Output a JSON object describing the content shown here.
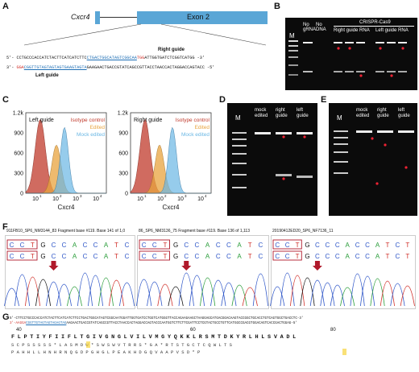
{
  "panels": {
    "A": "A",
    "B": "B",
    "C": "C",
    "D": "D",
    "E": "E",
    "F": "F",
    "G": "G"
  },
  "panelA": {
    "gene": "Cxcr4",
    "exon": "Exon 2",
    "right_guide_label": "Right guide",
    "left_guide_label": "Left guide",
    "seq_top_prefix": "5'- CCTGCCCACCATCTACTTCATCATCTTC",
    "seq_top_guide": "CTGACTGGCATAGTCGGCAA",
    "seq_top_pam": "TGG",
    "seq_top_suffix": "ATTGGTGATCTCGGTCATGG -3'",
    "seq_bot_prefix": "3'- ",
    "seq_bot_pam": "GGA",
    "seq_bot_guide": "CGGTTGTAGTAGTAGTGAAGTAGTA",
    "seq_bot_suffix": "GAAGAACTGACCGTATCAGCCGTTACCTAACCACTAGGACCAGTACC -5'"
  },
  "panelB": {
    "marker": "M",
    "lanes": [
      "No gRNA",
      "No DNA"
    ],
    "group": "CRISPR-Cas9",
    "sub1": "Right guide RNA",
    "sub2": "Left guide RNA"
  },
  "panelC": {
    "plots": [
      {
        "corner_label": "Left guide",
        "xlabel": "Cxcr4"
      },
      {
        "corner_label": "Right guide",
        "xlabel": "Cxcr4"
      }
    ],
    "legend": [
      "Isotype control",
      "Edited",
      "Mock edited"
    ],
    "yticks": [
      "1.2k",
      "900",
      "600",
      "300",
      "0"
    ],
    "xticks": [
      "10",
      "10",
      "10",
      "10"
    ],
    "xtick_exps": [
      "1",
      "2",
      "3",
      "4"
    ],
    "colors": {
      "isotype": "#c0392b",
      "edited": "#e8a33d",
      "mock": "#6ab7e4"
    }
  },
  "panelD": {
    "marker": "M",
    "lanes": [
      "mock edited",
      "right guide",
      "left guide"
    ]
  },
  "panelE": {
    "marker": "M",
    "lanes": [
      "mock edited",
      "right guide",
      "left guide"
    ]
  },
  "panelF": {
    "traces": [
      {
        "header": "911FB10_SP6_NM3144_83 Fragment base #119. Base 141 of 1,0",
        "bases_top": [
          "C",
          "C",
          "T",
          "G",
          "C",
          "C",
          "A",
          "C",
          "C",
          "A",
          "T",
          "C"
        ],
        "bases_bot": [
          "C",
          "C",
          "T",
          "G",
          "C",
          "C",
          "A",
          "C",
          "C",
          "A",
          "T",
          "C"
        ]
      },
      {
        "header": "86_SP6_NM3136_75 Fragment base #119. Base 136 of 1,113",
        "bases_top": [
          "C",
          "C",
          "T",
          "G",
          "C",
          "C",
          "A",
          "C",
          "C",
          "A",
          "T",
          "C"
        ],
        "bases_bot": [
          "C",
          "C",
          "T",
          "G",
          "C",
          "C",
          "A",
          "C",
          "C",
          "A",
          "T",
          "C"
        ]
      },
      {
        "header": "20190412ED20_SP6_NF7136_11",
        "bases_top": [
          "C",
          "C",
          "T",
          "G",
          "C",
          "C",
          "C",
          "A",
          "C",
          "C",
          "A",
          "T",
          "C",
          "T"
        ],
        "bases_bot": [
          "C",
          "C",
          "T",
          "G",
          "C",
          "C",
          "C",
          "A",
          "C",
          "C",
          "A",
          "T",
          "C",
          "T"
        ]
      }
    ]
  },
  "panelG": {
    "line1": "5'-CTTCCTGCCCACCATCTACTTCATCATCTTCCTGACTGGCATAGTCGGCAATGGATTGGTGATCCTGGTCATGGGTTACCAGAAGAAGCTAAGGAGCATGACGGACAAGTACCGGCTGCACCTGTCAGTGGCTGACCTC-3'",
    "line2_prefix": "3'-AAGGA",
    "line2_guide": "CGGTTGTAGTAGTAGAGTAG",
    "line2_rest": "AAGAACTGACCGTATCAGCCGTTACCTAACCACTAGGACCAGTACCCAATGGTCTTCTTCGATTCCTCGTACTGCCTGTTCATGGCCGACGTGGACAGTCACCGACTGGAG-5'",
    "ticks": [
      "40",
      "60",
      "80"
    ],
    "aa1": "F L P T I Y F I I F L T G I V G N G L V I L V M G Y Q K K L R S M T D K Y R L H L S V A D L",
    "aa2": "S C P S S S S S * L A S M D W * S W S W V T R R S * G A * R T S T G C T C Q W L T S",
    "aa3": "P A H H L L H N H R N Q G D P G H G L P E A K H D G Q V A A P V S D * P"
  }
}
